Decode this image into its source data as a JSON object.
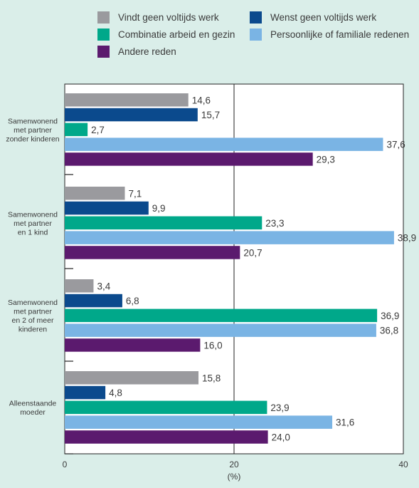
{
  "chart_data": {
    "type": "bar",
    "orientation": "horizontal",
    "categories": [
      [
        "Samenwonend",
        "met partner",
        "zonder kinderen"
      ],
      [
        "Samenwonend",
        "met partner",
        "en 1 kind"
      ],
      [
        "Samenwonend",
        "met partner",
        "en 2 of meer",
        "kinderen"
      ],
      [
        "Alleenstaande",
        "moeder"
      ]
    ],
    "series": [
      {
        "name": "Vindt geen voltijds werk",
        "color": "#9a9a9e",
        "values": [
          14.6,
          7.1,
          3.4,
          15.8
        ],
        "labels": [
          "14,6",
          "7,1",
          "3,4",
          "15,8"
        ]
      },
      {
        "name": "Wenst geen voltijds werk",
        "color": "#0b4a8d",
        "values": [
          15.7,
          9.9,
          6.8,
          4.8
        ],
        "labels": [
          "15,7",
          "9,9",
          "6,8",
          "4,8"
        ]
      },
      {
        "name": "Combinatie arbeid en gezin",
        "color": "#00a88a",
        "values": [
          2.7,
          23.3,
          36.9,
          23.9
        ],
        "labels": [
          "2,7",
          "23,3",
          "36,9",
          "23,9"
        ]
      },
      {
        "name": "Persoonlijke of familiale redenen",
        "color": "#7ab4e4",
        "values": [
          37.6,
          38.9,
          36.8,
          31.6
        ],
        "labels": [
          "37,6",
          "38,9",
          "36,8",
          "31,6"
        ]
      },
      {
        "name": "Andere reden",
        "color": "#5b1a6e",
        "values": [
          29.3,
          20.7,
          16.0,
          24.0
        ],
        "labels": [
          "29,3",
          "20,7",
          "16,0",
          "24,0"
        ]
      }
    ],
    "xlim": [
      0,
      40
    ],
    "xticks": [
      "0",
      "20",
      "40"
    ],
    "xlabel": "(%)",
    "legend_position": "top",
    "grid": false
  }
}
